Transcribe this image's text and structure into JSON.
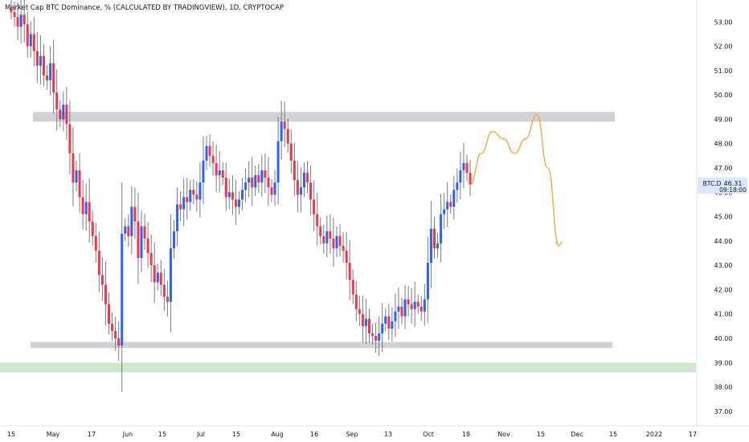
{
  "title": "Market Cap BTC Dominance, % (CALCULATED BY TRADINGVIEW), 1D, CRYPTOCAP",
  "chart_data": {
    "type": "candlestick",
    "ylim": [
      36.4,
      53.9
    ],
    "y_ticks": [
      "37.00",
      "38.00",
      "39.00",
      "40.00",
      "41.00",
      "42.00",
      "43.00",
      "44.00",
      "45.00",
      "46.00",
      "47.00",
      "48.00",
      "49.00",
      "50.00",
      "51.00",
      "52.00",
      "53.00"
    ],
    "x_ticks": [
      "15",
      "May",
      "17",
      "Jun",
      "15",
      "Jul",
      "15",
      "Aug",
      "16",
      "Sep",
      "13",
      "Oct",
      "18",
      "Nov",
      "15",
      "Dec",
      "15",
      "2022",
      "17"
    ],
    "price_label": {
      "symbol": "BTC.D",
      "value": "46.31",
      "countdown": "09:18:00"
    },
    "up_color": "#2962ff",
    "down_color": "#f23645",
    "zones": [
      {
        "name": "resistance",
        "low": 48.9,
        "high": 49.3,
        "color": "#c9c9cf"
      },
      {
        "name": "support",
        "low": 39.6,
        "high": 39.85,
        "color": "#c9c9cf"
      },
      {
        "name": "lower-support",
        "low": 38.6,
        "high": 39.0,
        "color": "#c8e6c9"
      }
    ],
    "close": [
      53.4,
      53.2,
      52.8,
      53.3,
      52.9,
      52.0,
      52.5,
      51.8,
      51.2,
      51.6,
      50.8,
      50.6,
      51.3,
      50.1,
      49.4,
      49.0,
      49.6,
      48.8,
      47.6,
      46.4,
      46.9,
      45.8,
      45.1,
      45.6,
      44.8,
      44.2,
      43.6,
      42.6,
      42.2,
      41.4,
      40.6,
      40.3,
      40.0,
      39.7,
      44.3,
      44.6,
      44.2,
      45.4,
      44.8,
      43.3,
      44.6,
      44.1,
      43.5,
      43.0,
      42.3,
      42.7,
      42.2,
      41.7,
      41.5,
      43.7,
      44.4,
      45.5,
      45.3,
      45.8,
      45.6,
      46.1,
      45.9,
      45.7,
      46.4,
      47.3,
      47.9,
      47.5,
      47.2,
      46.7,
      46.9,
      46.6,
      45.8,
      46.0,
      45.7,
      45.4,
      45.7,
      46.1,
      46.4,
      46.6,
      46.2,
      46.7,
      46.4,
      46.9,
      46.6,
      46.2,
      45.9,
      46.4,
      48.1,
      48.9,
      48.6,
      48.0,
      47.3,
      46.5,
      45.9,
      46.2,
      46.8,
      46.4,
      45.7,
      45.1,
      44.6,
      44.2,
      43.9,
      44.4,
      44.1,
      43.7,
      44.2,
      43.8,
      43.6,
      43.1,
      42.4,
      41.8,
      41.2,
      41.0,
      40.5,
      40.8,
      40.2,
      40.1,
      39.9,
      40.2,
      40.6,
      40.9,
      40.4,
      40.7,
      41.1,
      41.3,
      40.9,
      41.6,
      41.4,
      41.2,
      41.5,
      41.3,
      41.1,
      41.6,
      43.1,
      44.5,
      43.7,
      43.9,
      45.1,
      45.3,
      45.6,
      45.4,
      46.1,
      46.4,
      46.9,
      47.2,
      46.8,
      46.31
    ],
    "projection": [
      [
        46.31,
        0
      ],
      [
        47.6,
        6
      ],
      [
        48.5,
        12
      ],
      [
        48.2,
        18
      ],
      [
        47.6,
        24
      ],
      [
        48.2,
        30
      ],
      [
        49.2,
        36
      ],
      [
        47.0,
        42
      ],
      [
        43.8,
        48
      ]
    ]
  }
}
